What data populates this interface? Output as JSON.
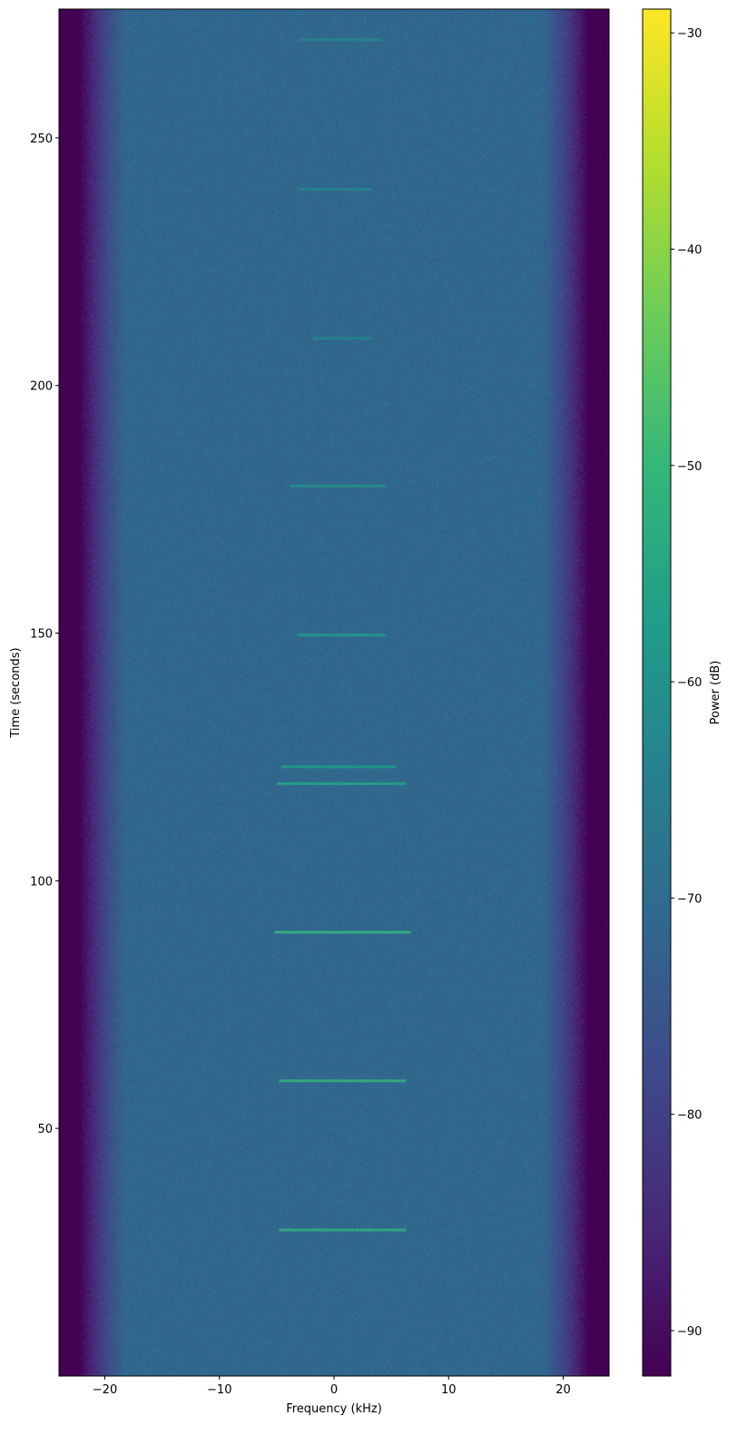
{
  "chart_data": {
    "type": "heatmap",
    "title": "",
    "xlabel": "Frequency (kHz)",
    "ylabel": "Time (seconds)",
    "xlim": [
      -24,
      24
    ],
    "ylim": [
      0,
      276
    ],
    "xticks": [
      -20,
      -10,
      0,
      10,
      20
    ],
    "xtick_labels": [
      "−20",
      "−10",
      "0",
      "10",
      "20"
    ],
    "yticks": [
      50,
      100,
      150,
      200,
      250
    ],
    "ytick_labels": [
      "50",
      "100",
      "150",
      "200",
      "250"
    ],
    "colormap": "viridis",
    "colorbar": {
      "label": "Power (dB)",
      "range": [
        -92.1,
        -28.9
      ],
      "ticks": [
        -30,
        -40,
        -50,
        -60,
        -70,
        -80,
        -90
      ],
      "tick_labels": [
        "−30",
        "−40",
        "−50",
        "−60",
        "−70",
        "−80",
        "−90"
      ]
    },
    "background": {
      "noise_floor_db": -71,
      "passband_khz": [
        -18,
        18
      ],
      "stopband_db": -92
    },
    "bursts": [
      {
        "time_s": 29.5,
        "f_start_khz": -4.8,
        "f_end_khz": 6.3,
        "power_db": -52
      },
      {
        "time_s": 59.6,
        "f_start_khz": -4.8,
        "f_end_khz": 6.3,
        "power_db": -51
      },
      {
        "time_s": 89.6,
        "f_start_khz": -5.2,
        "f_end_khz": 6.7,
        "power_db": -50
      },
      {
        "time_s": 119.6,
        "f_start_khz": -5.0,
        "f_end_khz": 6.3,
        "power_db": -55
      },
      {
        "time_s": 123.0,
        "f_start_khz": -4.6,
        "f_end_khz": 5.4,
        "power_db": -57
      },
      {
        "time_s": 149.6,
        "f_start_khz": -3.2,
        "f_end_khz": 4.5,
        "power_db": -57
      },
      {
        "time_s": 179.7,
        "f_start_khz": -3.8,
        "f_end_khz": 4.5,
        "power_db": -60
      },
      {
        "time_s": 209.5,
        "f_start_khz": -1.8,
        "f_end_khz": 3.3,
        "power_db": -63
      },
      {
        "time_s": 239.6,
        "f_start_khz": -3.0,
        "f_end_khz": 3.3,
        "power_db": -63
      },
      {
        "time_s": 269.8,
        "f_start_khz": -3.0,
        "f_end_khz": 4.1,
        "power_db": -63
      }
    ]
  }
}
